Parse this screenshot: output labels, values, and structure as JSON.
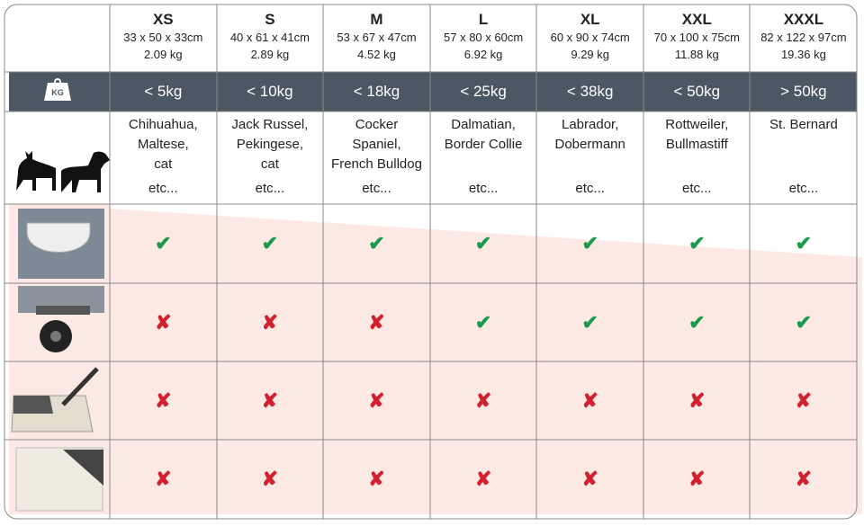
{
  "table": {
    "sizes": [
      {
        "size": "XS",
        "dimensions": "33 x 50 x 33cm",
        "weight": "2.09 kg",
        "max_weight": "< 5kg",
        "breeds": [
          "Chihuahua,",
          "Maltese,",
          "cat"
        ],
        "etc": "etc..."
      },
      {
        "size": "S",
        "dimensions": "40 x 61 x 41cm",
        "weight": "2.89 kg",
        "max_weight": "< 10kg",
        "breeds": [
          "Jack Russel,",
          "Pekingese,",
          "cat"
        ],
        "etc": "etc..."
      },
      {
        "size": "M",
        "dimensions": "53 x 67 x 47cm",
        "weight": "4.52 kg",
        "max_weight": "< 18kg",
        "breeds": [
          "Cocker",
          "Spaniel,",
          "French Bulldog"
        ],
        "etc": "etc..."
      },
      {
        "size": "L",
        "dimensions": "57 x 80 x 60cm",
        "weight": "6.92 kg",
        "max_weight": "< 25kg",
        "breeds": [
          "Dalmatian,",
          "Border Collie"
        ],
        "etc": "etc..."
      },
      {
        "size": "XL",
        "dimensions": "60 x 90 x 74cm",
        "weight": "9.29 kg",
        "max_weight": "< 38kg",
        "breeds": [
          "Labrador,",
          "Dobermann"
        ],
        "etc": "etc..."
      },
      {
        "size": "XXL",
        "dimensions": "70 x 100 x 75cm",
        "weight": "11.88 kg",
        "max_weight": "< 50kg",
        "breeds": [
          "Rottweiler,",
          "Bullmastiff"
        ],
        "etc": "etc..."
      },
      {
        "size": "XXXL",
        "dimensions": "82 x 122 x 97cm",
        "weight": "19.36 kg",
        "max_weight": "> 50kg",
        "breeds": [
          "St. Bernard"
        ],
        "etc": "etc..."
      }
    ],
    "weight_icon": "KG",
    "features": [
      [
        "✔",
        "✔",
        "✔",
        "✔",
        "✔",
        "✔",
        "✔"
      ],
      [
        "✘",
        "✘",
        "✘",
        "✔",
        "✔",
        "✔",
        "✔"
      ],
      [
        "✘",
        "✘",
        "✘",
        "✘",
        "✘",
        "✘",
        "✘"
      ],
      [
        "✘",
        "✘",
        "✘",
        "✘",
        "✘",
        "✘",
        "✘"
      ]
    ]
  }
}
